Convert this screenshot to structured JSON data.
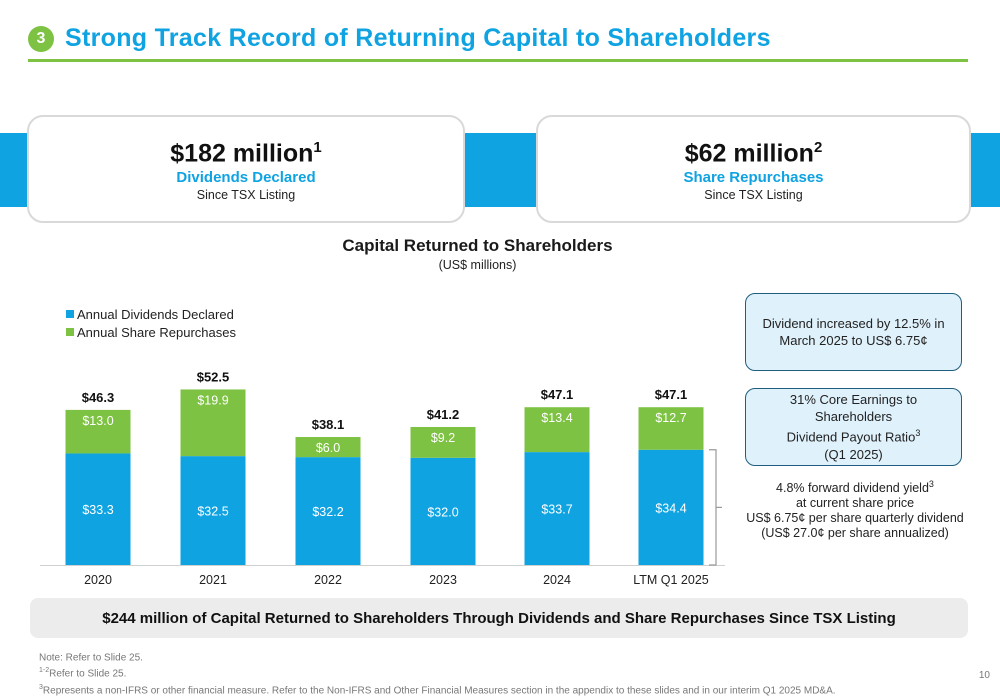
{
  "header": {
    "badge": "3",
    "title": "Strong Track Record of Returning Capital to Shareholders"
  },
  "cards": [
    {
      "big": "$182 million",
      "sup": "1",
      "sub": "Dividends Declared",
      "small": "Since TSX Listing"
    },
    {
      "big": "$62 million",
      "sup": "2",
      "sub": "Share Repurchases",
      "small": "Since TSX Listing"
    }
  ],
  "colors": {
    "blue": "#0fa3e2",
    "green": "#7dc242",
    "navy": "#1f5e7e"
  },
  "chart_data": {
    "type": "bar",
    "stacked": true,
    "title": "Capital Returned to Shareholders",
    "subtitle": "(US$ millions)",
    "categories": [
      "2020",
      "2021",
      "2022",
      "2023",
      "2024",
      "LTM Q1 2025"
    ],
    "series": [
      {
        "name": "Annual Dividends Declared",
        "color": "#0fa3e2",
        "values": [
          33.3,
          32.5,
          32.2,
          32.0,
          33.7,
          34.4
        ],
        "labels": [
          "$33.3",
          "$32.5",
          "$32.2",
          "$32.0",
          "$33.7",
          "$34.4"
        ]
      },
      {
        "name": "Annual Share Repurchases",
        "color": "#7dc242",
        "values": [
          13.0,
          19.9,
          6.0,
          9.2,
          13.4,
          12.7
        ],
        "labels": [
          "$13.0",
          "$19.9",
          "$6.0",
          "$9.2",
          "$13.4",
          "$12.7"
        ]
      }
    ],
    "totals": [
      "$46.3",
      "$52.5",
      "$38.1",
      "$41.2",
      "$47.1",
      "$47.1"
    ],
    "legend_position": "top-left",
    "grid": false
  },
  "info": {
    "dividend_increase": "Dividend increased by 12.5% in March 2025 to US$ 6.75¢",
    "payout_line1": "31% Core Earnings to",
    "payout_line2": "Shareholders",
    "payout_line3": "Dividend Payout Ratio",
    "payout_sup": "3",
    "payout_line4": "(Q1 2025)",
    "yield_line1": "4.8% forward dividend yield",
    "yield_sup": "3",
    "yield_line2": "at current share price",
    "yield_line3": "US$ 6.75¢ per share quarterly dividend",
    "yield_line4": "(US$ 27.0¢ per share annualized)"
  },
  "bottom_banner": "$244 million of Capital Returned to Shareholders Through Dividends and Share Repurchases Since TSX Listing",
  "notes": [
    {
      "sup": "",
      "text": "Note: Refer to Slide 25."
    },
    {
      "sup": "1-2",
      "text": "Refer to Slide 25."
    },
    {
      "sup": "3",
      "text": "Represents a non-IFRS or other financial measure. Refer to the Non-IFRS and Other Financial Measures section in the appendix to these slides and in our interim Q1 2025 MD&A."
    }
  ],
  "page_number": "10"
}
